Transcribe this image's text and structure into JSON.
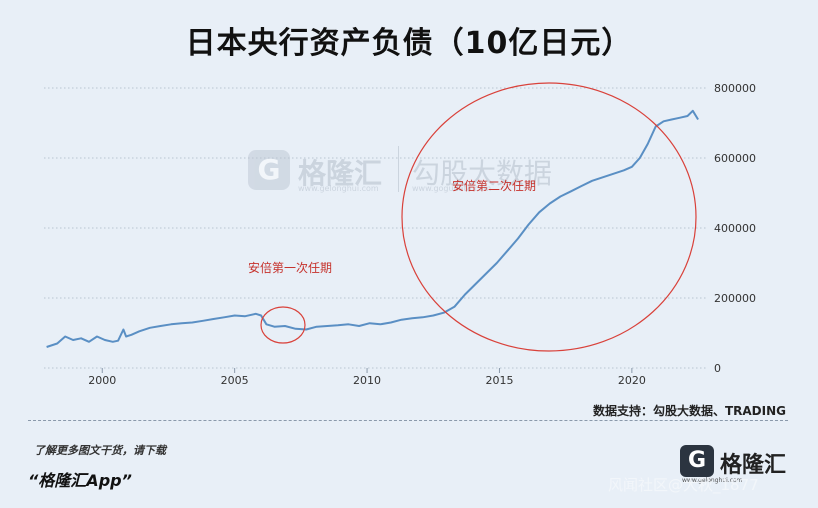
{
  "header": {
    "title": "日本央行资产负债（10亿日元）"
  },
  "source_note": "数据支持：勾股大数据、TRADING",
  "footer": {
    "promo_line1": "了解更多图文干货，请下载",
    "promo_line2": "“格隆汇App”",
    "logo_glyph": "G",
    "logo_name": "格隆汇",
    "logo_url": "www.gelonghui.com",
    "corner_watermark": "风闻社区@大秋_1877"
  },
  "watermark": {
    "glyph": "G",
    "name": "格隆汇",
    "partner": "勾股大数据",
    "url": "www.gelonghui.com",
    "url2": "www.gogudata.com"
  },
  "colors": {
    "line": "#5a8fc4",
    "circle": "#d9413a",
    "annotation": "#c6322c",
    "background": "#e8eff7"
  },
  "chart_data": {
    "type": "line",
    "title": "日本央行资产负债（10亿日元）",
    "xlabel": "",
    "ylabel": "",
    "xlim": [
      1997.8,
      2022.8
    ],
    "ylim": [
      0,
      800000
    ],
    "x_ticks": [
      2000,
      2005,
      2010,
      2015,
      2020
    ],
    "x_tick_labels": [
      "2000",
      "2005",
      "2010",
      "2015",
      "2020"
    ],
    "y_ticks": [
      0,
      200000,
      400000,
      600000,
      800000
    ],
    "y_tick_labels": [
      "0",
      "200000",
      "400000",
      "600000",
      "800000"
    ],
    "y_axis_position": "right",
    "grid": "horizontal-dotted",
    "series": [
      {
        "x": [
          1997.9,
          1998.3,
          1998.6,
          1998.9,
          1999.2,
          1999.5,
          1999.8,
          2000.1,
          2000.4,
          2000.6,
          2000.8,
          2000.9,
          2001.1,
          2001.4,
          2001.8,
          2002.2,
          2002.6,
          2003.0,
          2003.4,
          2003.8,
          2004.2,
          2004.6,
          2005.0,
          2005.4,
          2005.8,
          2006.0,
          2006.2,
          2006.5,
          2006.9,
          2007.3,
          2007.7,
          2008.1,
          2008.5,
          2008.9,
          2009.3,
          2009.7,
          2010.1,
          2010.5,
          2010.9,
          2011.3,
          2011.7,
          2012.1,
          2012.5,
          2012.9,
          2013.3,
          2013.7,
          2014.1,
          2014.5,
          2014.9,
          2015.3,
          2015.7,
          2016.1,
          2016.5,
          2016.9,
          2017.3,
          2017.7,
          2018.1,
          2018.5,
          2018.9,
          2019.3,
          2019.7,
          2020.0,
          2020.3,
          2020.6,
          2020.9,
          2021.2,
          2021.5,
          2021.8,
          2022.1,
          2022.3,
          2022.5
        ],
        "y": [
          60000,
          70000,
          90000,
          80000,
          85000,
          75000,
          90000,
          80000,
          75000,
          78000,
          110000,
          90000,
          95000,
          105000,
          115000,
          120000,
          125000,
          128000,
          130000,
          135000,
          140000,
          145000,
          150000,
          148000,
          155000,
          150000,
          125000,
          118000,
          120000,
          112000,
          110000,
          118000,
          120000,
          122000,
          125000,
          120000,
          128000,
          125000,
          130000,
          138000,
          142000,
          145000,
          150000,
          158000,
          175000,
          210000,
          240000,
          270000,
          300000,
          335000,
          370000,
          410000,
          445000,
          470000,
          490000,
          505000,
          520000,
          535000,
          545000,
          555000,
          565000,
          575000,
          600000,
          640000,
          690000,
          705000,
          710000,
          715000,
          720000,
          735000,
          710000
        ]
      }
    ],
    "annotations": [
      {
        "text": "安倍第一次任期",
        "x": 2006.8,
        "y": 115000
      },
      {
        "text": "安倍第二次任期",
        "x": 2016.5,
        "y": 650000
      }
    ]
  }
}
